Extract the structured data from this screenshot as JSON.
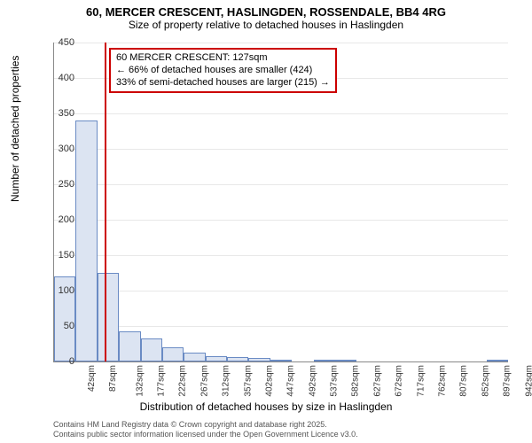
{
  "title_main": "60, MERCER CRESCENT, HASLINGDEN, ROSSENDALE, BB4 4RG",
  "title_sub": "Size of property relative to detached houses in Haslingden",
  "y_axis_label": "Number of detached properties",
  "x_axis_label": "Distribution of detached houses by size in Haslingden",
  "footer_line1": "Contains HM Land Registry data © Crown copyright and database right 2025.",
  "footer_line2": "Contains public sector information licensed under the Open Government Licence v3.0.",
  "annotation": {
    "line1": "60 MERCER CRESCENT: 127sqm",
    "line2": "← 66% of detached houses are smaller (424)",
    "line3": "33% of semi-detached houses are larger (215) →"
  },
  "chart": {
    "type": "histogram",
    "ylim": [
      0,
      450
    ],
    "ytick_step": 50,
    "bar_fill": "#dce4f2",
    "bar_border": "#6a8bc4",
    "grid_color": "#e8e8e8",
    "highlight_x": 127,
    "highlight_color": "#cc0000",
    "x_range": [
      20,
      965
    ],
    "x_ticks": [
      42,
      87,
      132,
      177,
      222,
      267,
      312,
      357,
      402,
      447,
      492,
      537,
      582,
      627,
      672,
      717,
      762,
      807,
      852,
      897,
      942
    ],
    "x_tick_suffix": "sqm",
    "bin_width": 45,
    "bins": [
      {
        "start": 20,
        "count": 120
      },
      {
        "start": 65,
        "count": 340
      },
      {
        "start": 110,
        "count": 125
      },
      {
        "start": 155,
        "count": 42
      },
      {
        "start": 200,
        "count": 32
      },
      {
        "start": 245,
        "count": 20
      },
      {
        "start": 290,
        "count": 12
      },
      {
        "start": 335,
        "count": 8
      },
      {
        "start": 380,
        "count": 6
      },
      {
        "start": 425,
        "count": 5
      },
      {
        "start": 470,
        "count": 3
      },
      {
        "start": 515,
        "count": 0
      },
      {
        "start": 560,
        "count": 3
      },
      {
        "start": 605,
        "count": 2
      },
      {
        "start": 650,
        "count": 0
      },
      {
        "start": 695,
        "count": 0
      },
      {
        "start": 740,
        "count": 0
      },
      {
        "start": 785,
        "count": 0
      },
      {
        "start": 830,
        "count": 0
      },
      {
        "start": 875,
        "count": 0
      },
      {
        "start": 920,
        "count": 2
      }
    ]
  }
}
